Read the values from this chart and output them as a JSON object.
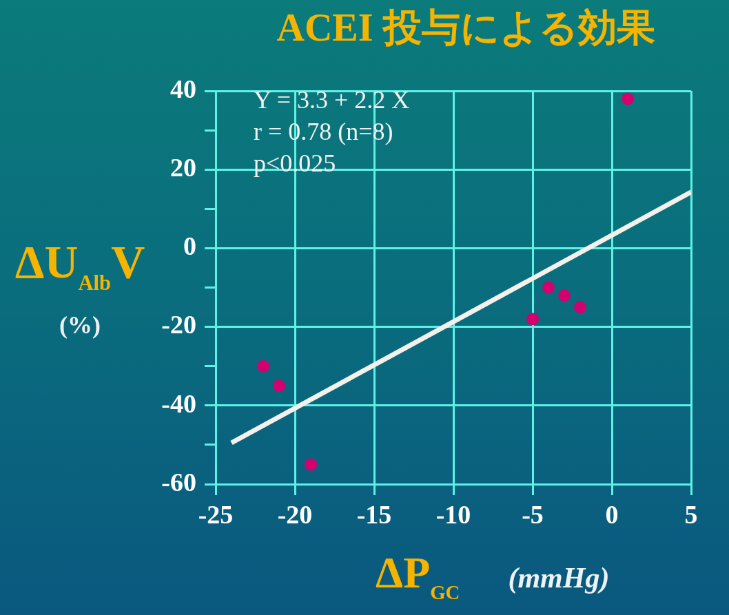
{
  "chart_data": {
    "type": "scatter",
    "title": "ACEI 投与による効果",
    "xlabel": "ΔP$_{GC}$ (mmHg)",
    "ylabel": "ΔU$_{Alb}$V (%)",
    "x": [
      -22,
      -21,
      -19,
      -5,
      -4,
      -3,
      -2,
      1
    ],
    "series": [
      {
        "color": "#d4006e",
        "values": [
          -30,
          -35,
          -55,
          -18,
          -10,
          -12,
          -15,
          38
        ]
      },
      {
        "type": "line",
        "color": "#f4f1ea",
        "x": [
          -24,
          5
        ],
        "values": [
          -49.5,
          14.3
        ],
        "marker": "none"
      }
    ],
    "xlim": [
      -25,
      5
    ],
    "xticks": [
      -25,
      -20,
      -15,
      -10,
      -5,
      0,
      5
    ],
    "ylim": [
      -60,
      40
    ],
    "yticks": [
      -60,
      {
        "value": -50,
        "label": null
      },
      -40,
      {
        "value": -30,
        "label": null
      },
      -20,
      {
        "value": -10,
        "label": null
      },
      0,
      {
        "value": 10,
        "label": null
      },
      20,
      {
        "value": 30,
        "label": null
      },
      40
    ],
    "grid": true,
    "marker": "circle",
    "annotations": [
      "Y = 3.3 + 2.2 X",
      "r = 0.78 (n=8)",
      "p<0.025"
    ]
  }
}
